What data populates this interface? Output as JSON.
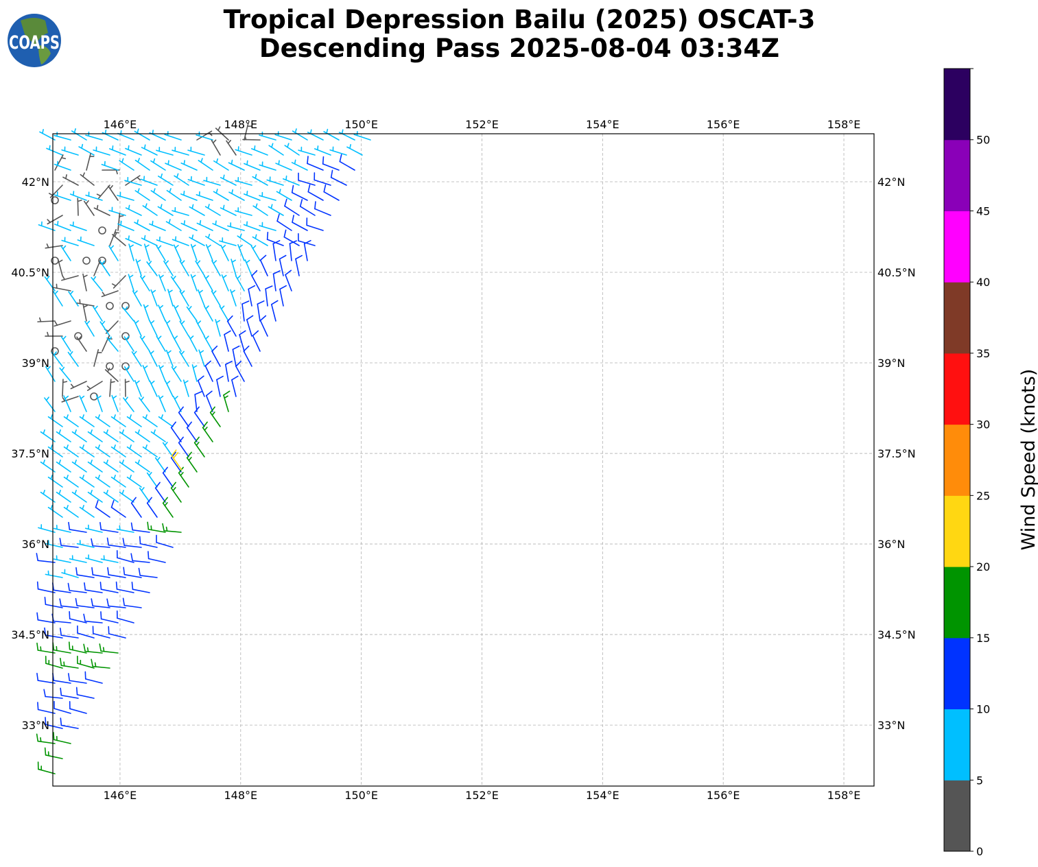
{
  "title": {
    "line1": "Tropical Depression Bailu (2025) OSCAT-3",
    "line2": "Descending Pass 2025-08-04 03:34Z"
  },
  "logo": {
    "text": "COAPS"
  },
  "chart_data": {
    "type": "wind-barb-map",
    "lon_range": [
      144.886,
      158.5
    ],
    "lat_range": [
      31.99,
      42.795
    ],
    "lon_ticks": [
      146,
      148,
      150,
      152,
      154,
      156,
      158
    ],
    "lon_tick_labels": [
      "146°E",
      "148°E",
      "150°E",
      "152°E",
      "154°E",
      "156°E",
      "158°E"
    ],
    "lat_ticks": [
      42,
      40.5,
      39,
      37.5,
      36,
      34.5,
      33
    ],
    "lat_tick_labels": [
      "42°N",
      "40.5°N",
      "39°N",
      "37.5°N",
      "36°N",
      "34.5°N",
      "33°N"
    ],
    "grid": true,
    "swath_edge": [
      [
        150.23,
        42.7
      ],
      [
        144.94,
        32.0
      ]
    ],
    "speed_zones": [
      {
        "speed": 17,
        "lat_range": [
          36.1,
          38.3
        ],
        "max_dist_deg": 0.42
      },
      {
        "speed": 17,
        "lat_range": [
          33.7,
          34.35
        ],
        "max_dist_deg": 9
      },
      {
        "speed": 17,
        "lat_range": [
          31.9,
          32.9
        ],
        "max_dist_deg": 9
      },
      {
        "speed": 12,
        "lat_range": [
          31.9,
          35.2
        ],
        "max_dist_deg": 9
      },
      {
        "speed": 12,
        "lat_range": [
          35.2,
          42.3
        ],
        "max_dist_deg": 0.75
      },
      {
        "speed": 3,
        "lat_range": [
          38.2,
          42.2
        ],
        "lon_max": 146.2
      },
      {
        "speed": 3,
        "lat_range": [
          42.2,
          42.8
        ],
        "lon_min": 147.2,
        "lon_max": 148.5
      },
      {
        "speed": 7,
        "lat_range": [
          31.9,
          42.8
        ]
      }
    ],
    "special_barbs": [
      {
        "lon": 147.02,
        "lat": 37.23,
        "speed": 22,
        "dir_screen_deg": 235
      }
    ],
    "colorbar": {
      "label": "Wind Speed (knots)",
      "bounds": [
        0,
        5,
        10,
        15,
        20,
        25,
        30,
        35,
        40,
        45,
        50,
        55
      ],
      "tick_labels": [
        "0",
        "5",
        "10",
        "15",
        "20",
        "25",
        "30",
        "35",
        "40",
        "45",
        "50"
      ],
      "colors": [
        "#555555",
        "#00bfff",
        "#0033ff",
        "#009400",
        "#ffd712",
        "#ff8c0a",
        "#ff1010",
        "#7f3a27",
        "#ff00ff",
        "#8a00b8",
        "#2c0060"
      ]
    }
  }
}
